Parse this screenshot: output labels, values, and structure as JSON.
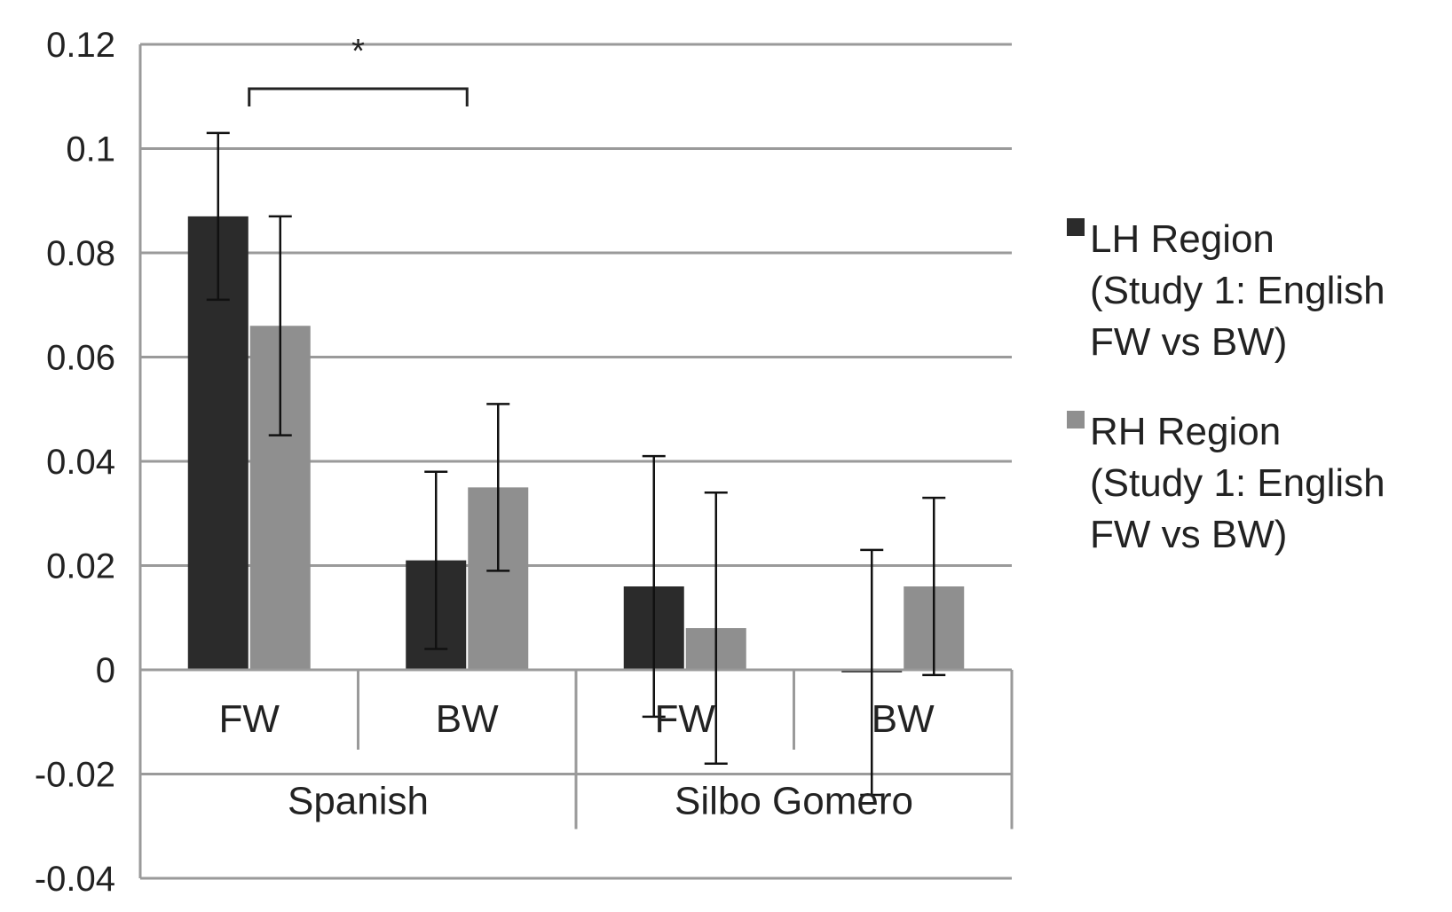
{
  "chart_data": {
    "type": "bar",
    "categories": [
      "FW",
      "BW",
      "FW",
      "BW"
    ],
    "groups": [
      {
        "label": "Spanish",
        "categories": [
          "FW",
          "BW"
        ]
      },
      {
        "label": "Silbo Gomero",
        "categories": [
          "FW",
          "BW"
        ]
      }
    ],
    "series": [
      {
        "name": "LH Region (Study 1: English FW vs BW)",
        "legend_lines": [
          "LH Region",
          "(Study 1: English",
          "FW vs BW)"
        ],
        "color": "#2b2b2b",
        "values": [
          0.087,
          0.021,
          0.016,
          -0.0005
        ],
        "error": [
          0.016,
          0.017,
          0.025,
          0.0235
        ]
      },
      {
        "name": "RH Region (Study 1: English FW vs BW)",
        "legend_lines": [
          "RH Region",
          "(Study 1: English",
          "FW vs BW)"
        ],
        "color": "#8f8f8f",
        "values": [
          0.066,
          0.035,
          0.008,
          0.016
        ],
        "error": [
          0.021,
          0.016,
          0.026,
          0.017
        ]
      }
    ],
    "ylim": [
      -0.04,
      0.12
    ],
    "yticks": [
      "0.12",
      "0.1",
      "0.08",
      "0.06",
      "0.04",
      "0.02",
      "0",
      "-0.02",
      "-0.04"
    ],
    "grid": true,
    "legend_position": "right",
    "annotations": [
      {
        "text": "*",
        "type": "significance-bracket",
        "from_category": 0,
        "to_category": 1
      }
    ]
  }
}
